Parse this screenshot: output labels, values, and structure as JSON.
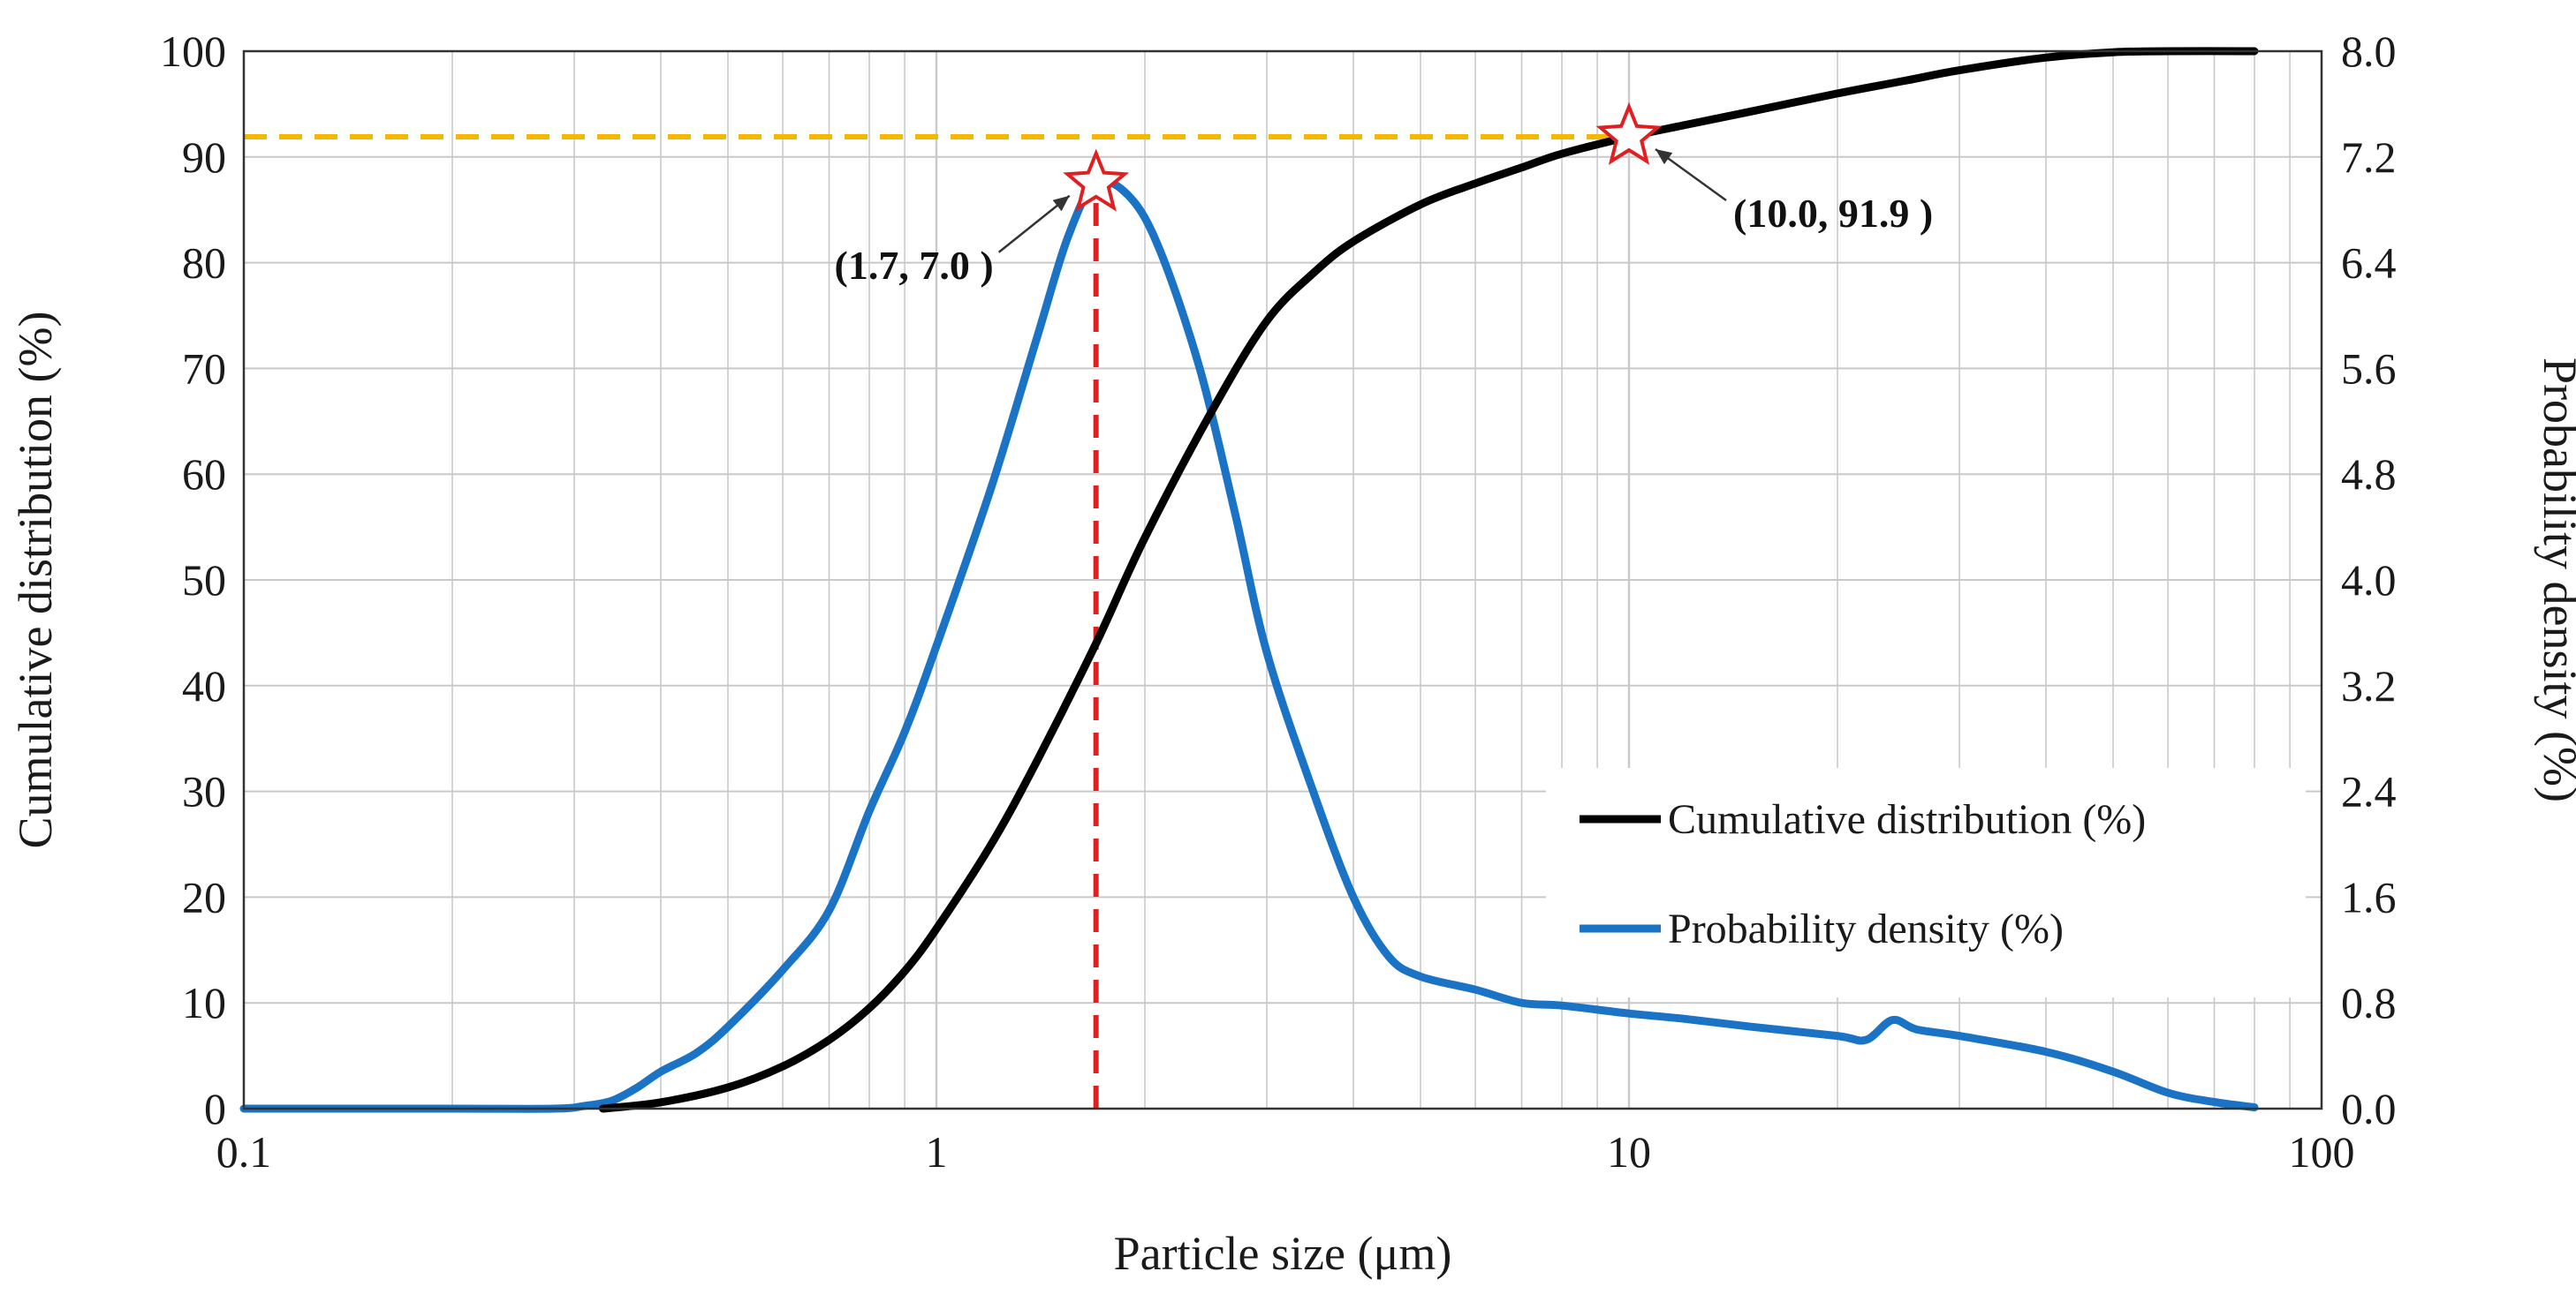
{
  "chart_data": {
    "type": "line",
    "x_scale": "log",
    "xlim": [
      0.1,
      100
    ],
    "ylim_left": [
      0,
      100
    ],
    "ylim_right": [
      0,
      8
    ],
    "x_ticks": [
      "0.1",
      "1",
      "10",
      "100"
    ],
    "y_left_ticks": [
      "0",
      "10",
      "20",
      "30",
      "40",
      "50",
      "60",
      "70",
      "80",
      "90",
      "100"
    ],
    "y_right_ticks": [
      "0.0",
      "0.8",
      "1.6",
      "2.4",
      "3.2",
      "4.0",
      "4.8",
      "5.6",
      "6.4",
      "7.2",
      "8.0"
    ],
    "xlabel": "Particle size (μm)",
    "ylabel_left": "Cumulative distribution (%)",
    "ylabel_right": "Probability density (%)",
    "grid": true,
    "legend_position": "bottom-right",
    "series": [
      {
        "name": "Cumulative distribution (%)",
        "axis": "left",
        "color": "#000000",
        "x": [
          0.33,
          0.4,
          0.5,
          0.6,
          0.7,
          0.8,
          0.9,
          1.0,
          1.2,
          1.4,
          1.7,
          2.0,
          2.5,
          3.0,
          3.5,
          4.0,
          5.0,
          6.0,
          7.0,
          8.0,
          10.0,
          12.0,
          15.0,
          20.0,
          25.0,
          30.0,
          40.0,
          50.0,
          60.0,
          80.0
        ],
        "values": [
          0.0,
          0.6,
          2.0,
          4.0,
          6.5,
          9.5,
          13.0,
          17.0,
          25.0,
          33.0,
          44.0,
          54.0,
          66.0,
          74.5,
          79.0,
          82.0,
          85.5,
          87.5,
          89.0,
          90.3,
          91.9,
          93.0,
          94.3,
          96.0,
          97.2,
          98.2,
          99.4,
          99.9,
          100.0,
          100.0
        ]
      },
      {
        "name": "Probability density (%)",
        "axis": "right",
        "color": "#1a73c4",
        "x": [
          0.1,
          0.2,
          0.28,
          0.31,
          0.34,
          0.37,
          0.4,
          0.45,
          0.5,
          0.6,
          0.7,
          0.8,
          0.9,
          1.0,
          1.2,
          1.4,
          1.55,
          1.7,
          1.9,
          2.1,
          2.4,
          2.7,
          3.0,
          3.5,
          4.0,
          4.5,
          5.0,
          6.0,
          7.0,
          8.0,
          10.0,
          12.0,
          15.0,
          20.0,
          22.0,
          24.0,
          26.0,
          30.0,
          40.0,
          50.0,
          60.0,
          70.0,
          80.0
        ],
        "values": [
          0.0,
          0.0,
          0.0,
          0.02,
          0.06,
          0.16,
          0.28,
          0.42,
          0.62,
          1.05,
          1.5,
          2.25,
          2.85,
          3.5,
          4.7,
          5.85,
          6.6,
          7.0,
          6.9,
          6.5,
          5.6,
          4.5,
          3.45,
          2.4,
          1.6,
          1.15,
          1.0,
          0.9,
          0.8,
          0.78,
          0.72,
          0.68,
          0.62,
          0.55,
          0.52,
          0.67,
          0.6,
          0.55,
          0.43,
          0.28,
          0.12,
          0.05,
          0.01
        ]
      }
    ],
    "reference_lines": [
      {
        "orientation": "horizontal",
        "axis": "left",
        "y": 91.9,
        "x_from": 0.1,
        "x_to": 10.0,
        "color": "#f5b800",
        "style": "dashed"
      },
      {
        "orientation": "vertical",
        "axis": "right",
        "x": 1.7,
        "y_from": 0,
        "y_to": 7.0,
        "color": "#e02020",
        "style": "dashed"
      }
    ],
    "markers": [
      {
        "axis": "right",
        "x": 1.7,
        "y": 7.0,
        "label": "(1.7, 7.0 )",
        "label_side": "left"
      },
      {
        "axis": "left",
        "x": 10.0,
        "y": 91.9,
        "label": "(10.0, 91.9 )",
        "label_side": "right"
      }
    ],
    "star_color": "#e02020"
  }
}
